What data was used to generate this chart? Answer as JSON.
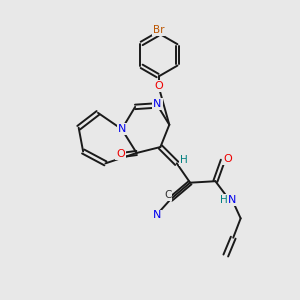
{
  "background_color": "#e8e8e8",
  "bond_color": "#1a1a1a",
  "atom_colors": {
    "N": "#0000ee",
    "O": "#ee0000",
    "Br": "#bb5500",
    "H": "#008080",
    "C": "#333333"
  },
  "figsize": [
    3.0,
    3.0
  ],
  "dpi": 100
}
